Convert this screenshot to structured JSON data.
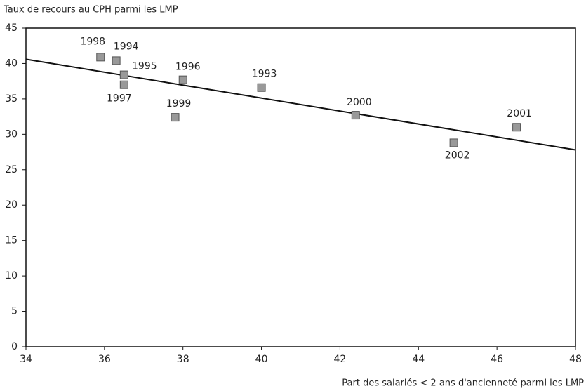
{
  "chart_data": {
    "type": "scatter",
    "y_label": "Taux de recours au CPH parmi les LMP",
    "x_label": "Part des salariés < 2 ans d'ancienneté parmi les LMP",
    "labels": [
      "1998",
      "1994",
      "1995",
      "1997",
      "1996",
      "1999",
      "1993",
      "2000",
      "2002",
      "2001"
    ],
    "x": [
      35.9,
      36.3,
      36.5,
      36.5,
      38.0,
      37.8,
      40.0,
      42.4,
      44.9,
      46.5
    ],
    "values": [
      40.9,
      40.4,
      38.4,
      37.0,
      37.7,
      32.4,
      36.6,
      32.7,
      28.8,
      31.0
    ],
    "color": "#999999",
    "trend": {
      "x": [
        34,
        48
      ],
      "values": [
        40.6,
        27.8
      ],
      "color": "#111111"
    },
    "xlim": [
      34,
      48
    ],
    "xticks": [
      34,
      36,
      38,
      40,
      42,
      44,
      46,
      48
    ],
    "ylim": [
      0,
      45
    ],
    "yticks": [
      0,
      5,
      10,
      15,
      20,
      25,
      30,
      35,
      40,
      45
    ]
  }
}
